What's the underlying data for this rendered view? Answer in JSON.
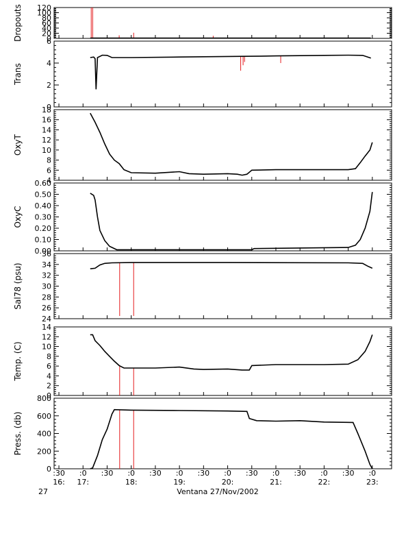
{
  "chart_data": {
    "type": "line",
    "time_axis": {
      "ticks": [
        {
          "t": 16.5,
          "top": ":30",
          "bottom": "16:"
        },
        {
          "t": 17.0,
          "top": ":0",
          "bottom": "17:"
        },
        {
          "t": 17.5,
          "top": ":30",
          "bottom": ""
        },
        {
          "t": 18.0,
          "top": ":0",
          "bottom": "18:"
        },
        {
          "t": 18.5,
          "top": ":30",
          "bottom": ""
        },
        {
          "t": 19.0,
          "top": ":0",
          "bottom": "19:"
        },
        {
          "t": 19.5,
          "top": ":30",
          "bottom": ""
        },
        {
          "t": 20.0,
          "top": ":0",
          "bottom": "20:"
        },
        {
          "t": 20.5,
          "top": ":30",
          "bottom": ""
        },
        {
          "t": 21.0,
          "top": ":0",
          "bottom": "21:"
        },
        {
          "t": 21.5,
          "top": ":30",
          "bottom": ""
        },
        {
          "t": 22.0,
          "top": ":0",
          "bottom": "22:"
        },
        {
          "t": 22.5,
          "top": ":30",
          "bottom": ""
        },
        {
          "t": 23.0,
          "top": ":0",
          "bottom": "23:"
        }
      ],
      "range": [
        16.4,
        23.4
      ],
      "day_label": "27",
      "title": "Ventana 27/Nov/2002"
    },
    "panels": [
      {
        "id": "dropouts",
        "ylabel": "Dropouts",
        "ylim": [
          0,
          120
        ],
        "ticks": [
          0,
          20,
          40,
          60,
          80,
          100,
          120
        ],
        "tick_labels": [
          "0",
          "20",
          "40",
          "60",
          "80",
          "100",
          "120"
        ],
        "series": [
          {
            "values": [
              [
                17.15,
                1
              ],
              [
                22.97,
                1
              ]
            ]
          }
        ],
        "spikes": [
          [
            17.17,
            120
          ],
          [
            17.2,
            120
          ],
          [
            17.75,
            12
          ],
          [
            18.05,
            22
          ],
          [
            19.7,
            10
          ]
        ]
      },
      {
        "id": "trans",
        "ylabel": "Trans",
        "ylim": [
          0,
          6
        ],
        "ticks": [
          0,
          2,
          4,
          6
        ],
        "tick_labels": [
          "0",
          "2",
          "4",
          "6"
        ],
        "series": [
          {
            "values": [
              [
                17.15,
                4.5
              ],
              [
                17.22,
                4.55
              ],
              [
                17.25,
                4.4
              ],
              [
                17.27,
                1.6
              ],
              [
                17.3,
                4.5
              ],
              [
                17.4,
                4.72
              ],
              [
                17.5,
                4.7
              ],
              [
                17.6,
                4.5
              ],
              [
                18.0,
                4.5
              ],
              [
                19.0,
                4.55
              ],
              [
                20.0,
                4.6
              ],
              [
                20.5,
                4.62
              ],
              [
                21.0,
                4.65
              ],
              [
                22.0,
                4.7
              ],
              [
                22.5,
                4.72
              ],
              [
                22.8,
                4.7
              ],
              [
                22.97,
                4.45
              ]
            ]
          }
        ],
        "spikes": [
          [
            20.27,
            3.3
          ],
          [
            20.32,
            3.8
          ],
          [
            20.35,
            4.1
          ],
          [
            21.1,
            4.0
          ]
        ]
      },
      {
        "id": "oxyt",
        "ylabel": "OxyT",
        "ylim": [
          4,
          18
        ],
        "ticks": [
          4,
          6,
          8,
          10,
          12,
          14,
          16,
          18
        ],
        "tick_labels": [
          "4",
          "6",
          "8",
          "10",
          "12",
          "14",
          "16",
          "18"
        ],
        "series": [
          {
            "values": [
              [
                17.15,
                17.3
              ],
              [
                17.25,
                15.5
              ],
              [
                17.35,
                13.5
              ],
              [
                17.45,
                11.2
              ],
              [
                17.55,
                9.2
              ],
              [
                17.65,
                8.0
              ],
              [
                17.75,
                7.3
              ],
              [
                17.85,
                6.1
              ],
              [
                18.0,
                5.5
              ],
              [
                18.5,
                5.4
              ],
              [
                19.0,
                5.7
              ],
              [
                19.2,
                5.3
              ],
              [
                19.5,
                5.2
              ],
              [
                20.0,
                5.3
              ],
              [
                20.2,
                5.2
              ],
              [
                20.3,
                5.0
              ],
              [
                20.4,
                5.2
              ],
              [
                20.5,
                6.0
              ],
              [
                21.0,
                6.1
              ],
              [
                22.0,
                6.1
              ],
              [
                22.5,
                6.1
              ],
              [
                22.65,
                6.3
              ],
              [
                22.75,
                7.5
              ],
              [
                22.85,
                8.8
              ],
              [
                22.95,
                10.0
              ],
              [
                23.0,
                11.5
              ]
            ]
          }
        ],
        "spikes": []
      },
      {
        "id": "oxyc",
        "ylabel": "OxyC",
        "ylim": [
          0.0,
          0.6
        ],
        "ticks": [
          0.0,
          0.1,
          0.2,
          0.3,
          0.4,
          0.5,
          0.6
        ],
        "tick_labels": [
          "0.00",
          "0.10",
          "0.20",
          "0.30",
          "0.40",
          "0.50",
          "0.60"
        ],
        "series": [
          {
            "values": [
              [
                17.15,
                0.51
              ],
              [
                17.22,
                0.49
              ],
              [
                17.25,
                0.45
              ],
              [
                17.3,
                0.3
              ],
              [
                17.35,
                0.18
              ],
              [
                17.45,
                0.09
              ],
              [
                17.55,
                0.04
              ],
              [
                17.7,
                0.01
              ],
              [
                18.0,
                0.01
              ],
              [
                20.5,
                0.01
              ],
              [
                20.55,
                0.02
              ],
              [
                22.5,
                0.03
              ],
              [
                22.65,
                0.05
              ],
              [
                22.75,
                0.1
              ],
              [
                22.85,
                0.2
              ],
              [
                22.95,
                0.35
              ],
              [
                23.0,
                0.52
              ]
            ]
          }
        ],
        "spikes": []
      },
      {
        "id": "sal78",
        "ylabel": "Sal78 (psu)",
        "ylim": [
          24,
          36
        ],
        "ticks": [
          24,
          26,
          28,
          30,
          32,
          34,
          36
        ],
        "tick_labels": [
          "24",
          "26",
          "28",
          "30",
          "32",
          "34",
          "36"
        ],
        "series": [
          {
            "values": [
              [
                17.15,
                33.2
              ],
              [
                17.25,
                33.3
              ],
              [
                17.35,
                33.9
              ],
              [
                17.45,
                34.2
              ],
              [
                17.6,
                34.3
              ],
              [
                18.0,
                34.35
              ],
              [
                20.0,
                34.35
              ],
              [
                22.5,
                34.3
              ],
              [
                22.8,
                34.2
              ],
              [
                22.9,
                33.7
              ],
              [
                23.0,
                33.3
              ]
            ]
          }
        ],
        "spikes": [
          [
            17.76,
            24.5
          ],
          [
            18.05,
            24.5
          ]
        ]
      },
      {
        "id": "temp",
        "ylabel": "Temp. (C)",
        "ylim": [
          0,
          14
        ],
        "ticks": [
          0,
          2,
          4,
          6,
          8,
          10,
          12,
          14
        ],
        "tick_labels": [
          "0",
          "2",
          "4",
          "6",
          "8",
          "10",
          "12",
          "14"
        ],
        "series": [
          {
            "values": [
              [
                17.15,
                12.4
              ],
              [
                17.2,
                12.4
              ],
              [
                17.25,
                11.2
              ],
              [
                17.35,
                10.2
              ],
              [
                17.45,
                9.0
              ],
              [
                17.55,
                8.0
              ],
              [
                17.65,
                7.0
              ],
              [
                17.75,
                6.1
              ],
              [
                17.85,
                5.6
              ],
              [
                18.0,
                5.6
              ],
              [
                18.5,
                5.6
              ],
              [
                19.0,
                5.8
              ],
              [
                19.3,
                5.4
              ],
              [
                19.5,
                5.3
              ],
              [
                20.0,
                5.4
              ],
              [
                20.3,
                5.2
              ],
              [
                20.45,
                5.2
              ],
              [
                20.5,
                6.1
              ],
              [
                21.0,
                6.3
              ],
              [
                22.0,
                6.3
              ],
              [
                22.5,
                6.4
              ],
              [
                22.7,
                7.3
              ],
              [
                22.85,
                9.0
              ],
              [
                22.95,
                11.0
              ],
              [
                23.0,
                12.4
              ]
            ]
          }
        ],
        "spikes": [
          [
            17.76,
            0
          ],
          [
            18.05,
            0
          ]
        ]
      },
      {
        "id": "press",
        "ylabel": "Press. (db)",
        "ylim": [
          0,
          800
        ],
        "ticks": [
          0,
          200,
          400,
          600,
          800
        ],
        "tick_labels": [
          "0",
          "200",
          "400",
          "600",
          "800"
        ],
        "series": [
          {
            "values": [
              [
                17.15,
                0
              ],
              [
                17.2,
                10
              ],
              [
                17.3,
                150
              ],
              [
                17.4,
                330
              ],
              [
                17.5,
                450
              ],
              [
                17.6,
                620
              ],
              [
                17.65,
                670
              ],
              [
                18.0,
                665
              ],
              [
                19.0,
                660
              ],
              [
                20.0,
                655
              ],
              [
                20.4,
                650
              ],
              [
                20.45,
                570
              ],
              [
                20.6,
                545
              ],
              [
                21.0,
                540
              ],
              [
                21.5,
                545
              ],
              [
                22.0,
                530
              ],
              [
                22.6,
                525
              ],
              [
                22.7,
                400
              ],
              [
                22.85,
                200
              ],
              [
                22.95,
                50
              ],
              [
                23.0,
                0
              ]
            ]
          }
        ],
        "spikes": [
          [
            17.76,
            0
          ],
          [
            18.05,
            0
          ]
        ]
      }
    ]
  }
}
